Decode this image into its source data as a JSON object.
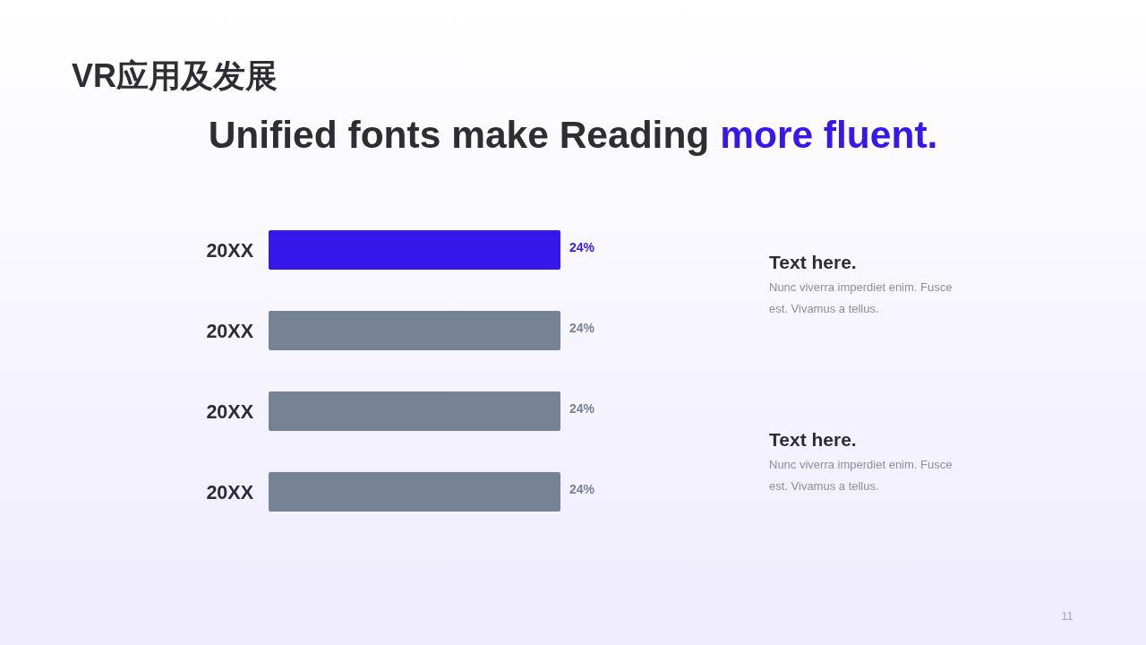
{
  "chart_data": {
    "type": "bar",
    "orientation": "horizontal",
    "title": "VR应用及发展",
    "subtitle": "Unified fonts make Reading more fluent.",
    "categories": [
      "20XX",
      "20XX",
      "20XX",
      "20XX"
    ],
    "values": [
      24,
      24,
      24,
      24
    ],
    "colors": [
      "#3718ec",
      "#768396",
      "#768396",
      "#768396"
    ],
    "value_labels": [
      "24%",
      "24%",
      "24%",
      "24%"
    ],
    "annotations": [
      "Text here.",
      "Nunc viverra imperdiet enim. Fusce est. Vivamus a tellus.",
      "Text here.",
      "Nunc viverra imperdiet enim. Fusce est. Vivamus a tellus.",
      "11"
    ]
  }
}
